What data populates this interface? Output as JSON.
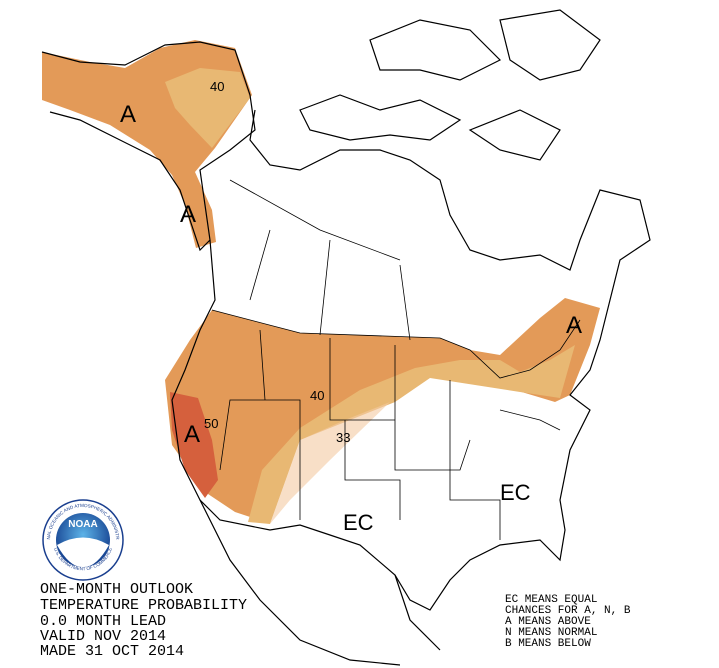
{
  "title_block": {
    "lines": [
      "ONE-MONTH OUTLOOK",
      "TEMPERATURE PROBABILITY",
      "0.0 MONTH LEAD",
      "VALID NOV 2014",
      "MADE 31 OCT 2014"
    ]
  },
  "legend": {
    "lines": [
      "EC MEANS EQUAL",
      "CHANCES FOR A, N, B",
      "A MEANS ABOVE",
      "N MEANS NORMAL",
      "B MEANS BELOW"
    ]
  },
  "map": {
    "category_labels": [
      "A",
      "A",
      "A",
      "A",
      "EC",
      "EC"
    ],
    "contour_labels": [
      40,
      40,
      50,
      33
    ]
  },
  "logo": {
    "name": "NOAA",
    "ring_top": "NATIONAL OCEANIC AND ATMOSPHERIC ADMINISTRATION",
    "ring_bottom": "U.S. DEPARTMENT OF COMMERCE"
  }
}
